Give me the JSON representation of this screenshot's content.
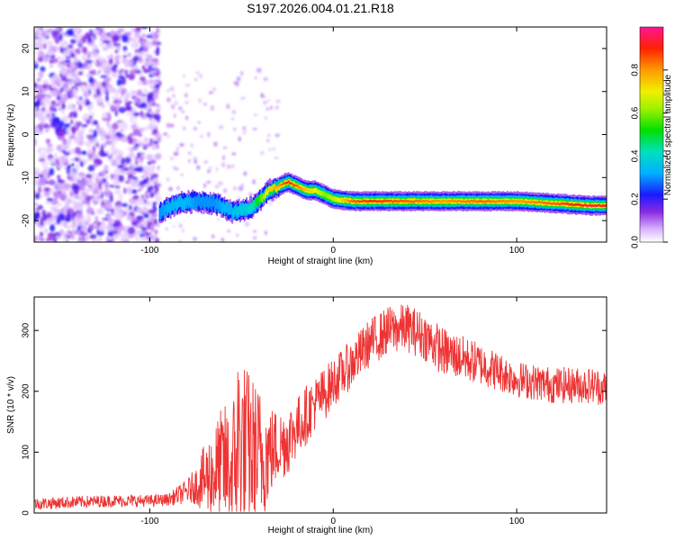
{
  "chart_data": [
    {
      "type": "heatmap",
      "title": "S197.2026.004.01.21.R18",
      "xlabel": "Height of straight line (km)",
      "ylabel": "Frequency (Hz)",
      "xlim": [
        -163,
        149
      ],
      "ylim": [
        -25,
        25
      ],
      "xticks": [
        -100,
        0,
        100
      ],
      "yticks": [
        -20,
        -10,
        0,
        10,
        20
      ],
      "colorbar": {
        "label": "Normalized spectral amplitude",
        "range": [
          0,
          1
        ],
        "ticks": [
          0.0,
          0.2,
          0.4,
          0.6,
          0.8
        ]
      },
      "ridge": {
        "name": "dominant frequency track",
        "x": [
          -95,
          -85,
          -75,
          -65,
          -55,
          -45,
          -35,
          -30,
          -25,
          -20,
          -15,
          -10,
          -5,
          0,
          10,
          20,
          40,
          60,
          80,
          100,
          120,
          140,
          149
        ],
        "frequency": [
          -18,
          -16,
          -15.5,
          -16,
          -18,
          -17,
          -13,
          -12,
          -11,
          -12,
          -13,
          -13,
          -14,
          -15,
          -15.5,
          -15.5,
          -15.5,
          -15.5,
          -15.5,
          -15.5,
          -16,
          -16.5,
          -16.5
        ],
        "amplitude": [
          0.3,
          0.35,
          0.3,
          0.3,
          0.35,
          0.4,
          0.75,
          0.8,
          0.9,
          0.85,
          0.75,
          0.7,
          0.6,
          0.65,
          0.85,
          0.9,
          0.85,
          0.8,
          0.85,
          0.8,
          0.85,
          0.95,
          0.9
        ]
      }
    },
    {
      "type": "line",
      "xlabel": "Height of straight line (km)",
      "ylabel": "SNR (10 * v/v)",
      "xlim": [
        -163,
        149
      ],
      "ylim": [
        0,
        355
      ],
      "xticks": [
        -100,
        0,
        100
      ],
      "yticks": [
        0,
        100,
        200,
        300
      ],
      "series": [
        {
          "name": "SNR",
          "color": "#ee3333",
          "x": [
            -163,
            -140,
            -120,
            -100,
            -90,
            -80,
            -75,
            -70,
            -65,
            -60,
            -55,
            -52,
            -50,
            -45,
            -40,
            -35,
            -30,
            -25,
            -20,
            -15,
            -10,
            -5,
            0,
            10,
            20,
            30,
            40,
            50,
            60,
            80,
            100,
            120,
            140,
            149
          ],
          "y": [
            15,
            18,
            20,
            20,
            22,
            35,
            45,
            55,
            65,
            80,
            60,
            120,
            110,
            100,
            90,
            100,
            110,
            120,
            140,
            160,
            180,
            195,
            215,
            245,
            280,
            300,
            305,
            290,
            265,
            245,
            220,
            210,
            210,
            205
          ],
          "noise": [
            10,
            10,
            10,
            10,
            10,
            20,
            30,
            60,
            80,
            100,
            120,
            160,
            150,
            130,
            120,
            80,
            60,
            60,
            50,
            50,
            45,
            45,
            40,
            40,
            40,
            40,
            40,
            40,
            40,
            35,
            30,
            30,
            30,
            30
          ]
        }
      ]
    }
  ]
}
